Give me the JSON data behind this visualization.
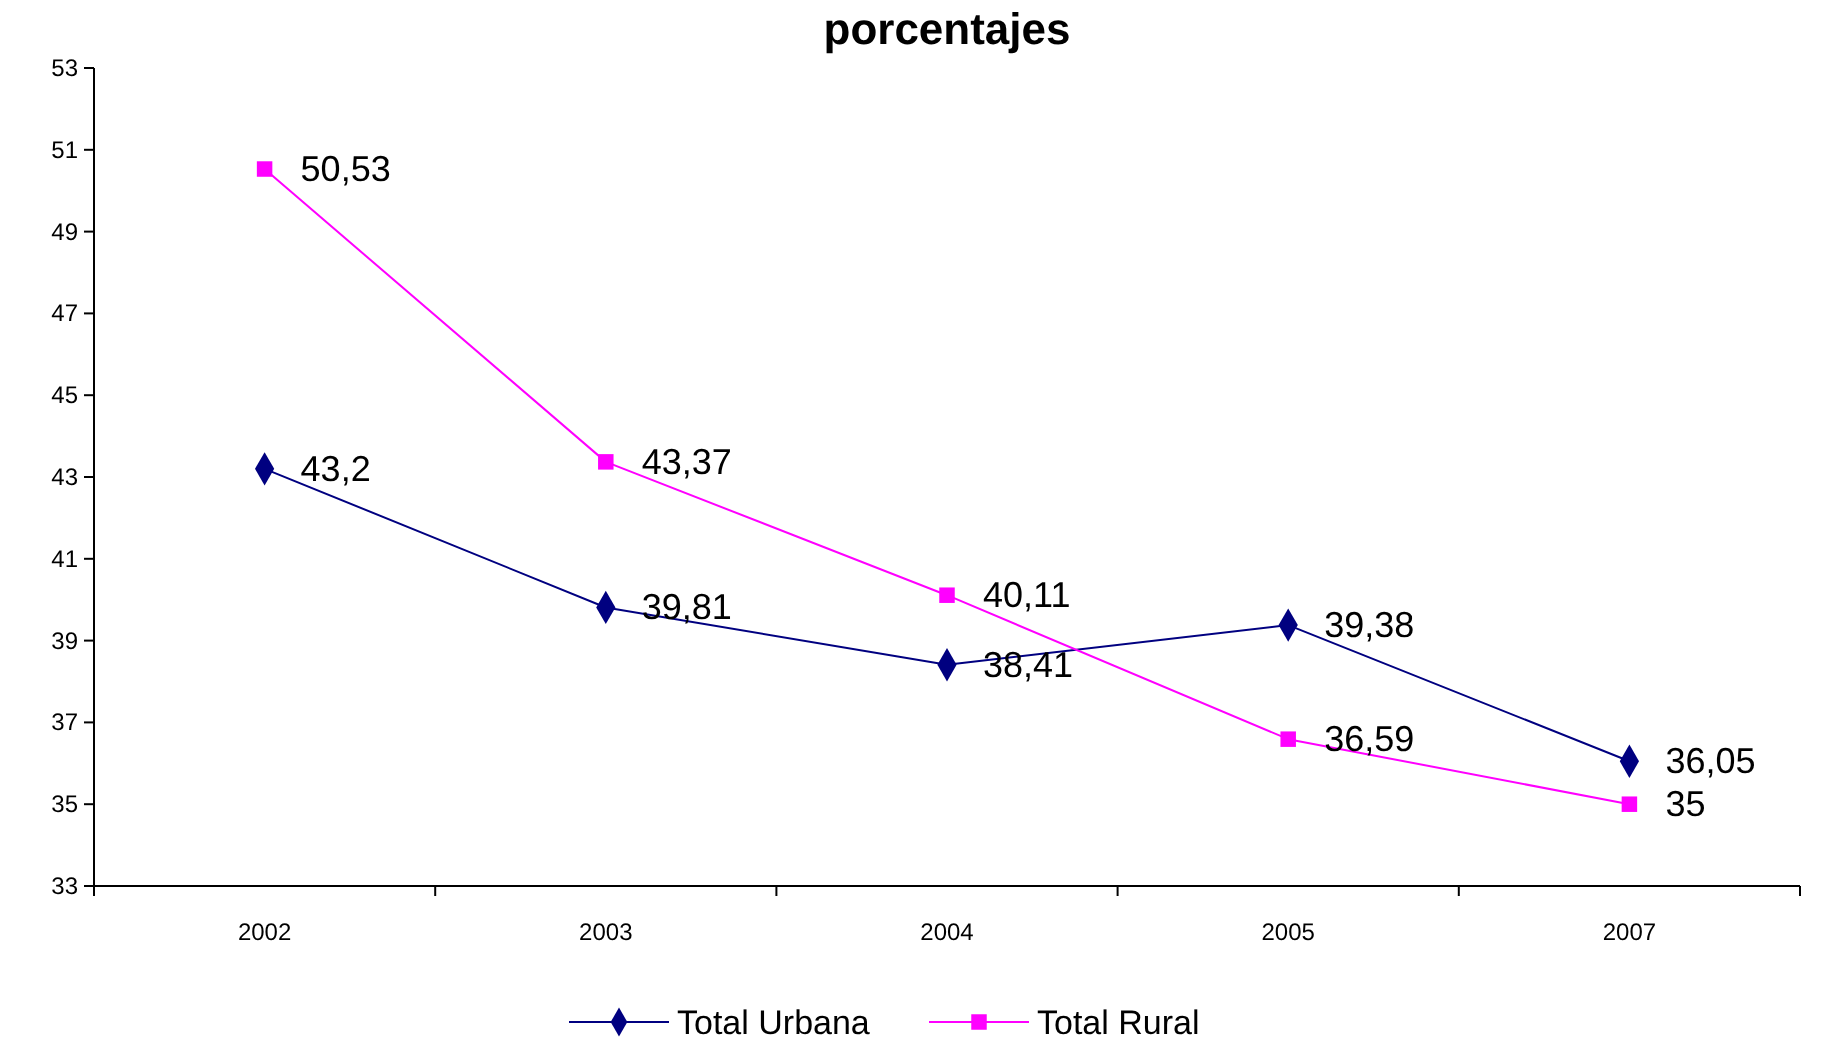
{
  "chart_data": {
    "type": "line",
    "title": "porcentajes",
    "categories": [
      "2002",
      "2003",
      "2004",
      "2005",
      "2007"
    ],
    "series": [
      {
        "name": "Total Urbana",
        "color": "#000080",
        "marker": "diamond",
        "values": [
          43.2,
          39.81,
          38.41,
          39.38,
          36.05
        ],
        "value_labels": [
          "43,2",
          "39,81",
          "38,41",
          "39,38",
          "36,05"
        ]
      },
      {
        "name": "Total Rural",
        "color": "#ff00ff",
        "marker": "square",
        "values": [
          50.53,
          43.37,
          40.11,
          36.59,
          35
        ],
        "value_labels": [
          "50,53",
          "43,37",
          "40,11",
          "36,59",
          "35"
        ]
      }
    ],
    "ylim": [
      33,
      53
    ],
    "yticks": [
      33,
      35,
      37,
      39,
      41,
      43,
      45,
      47,
      49,
      51,
      53
    ],
    "grid": false,
    "legend": "bottom"
  }
}
